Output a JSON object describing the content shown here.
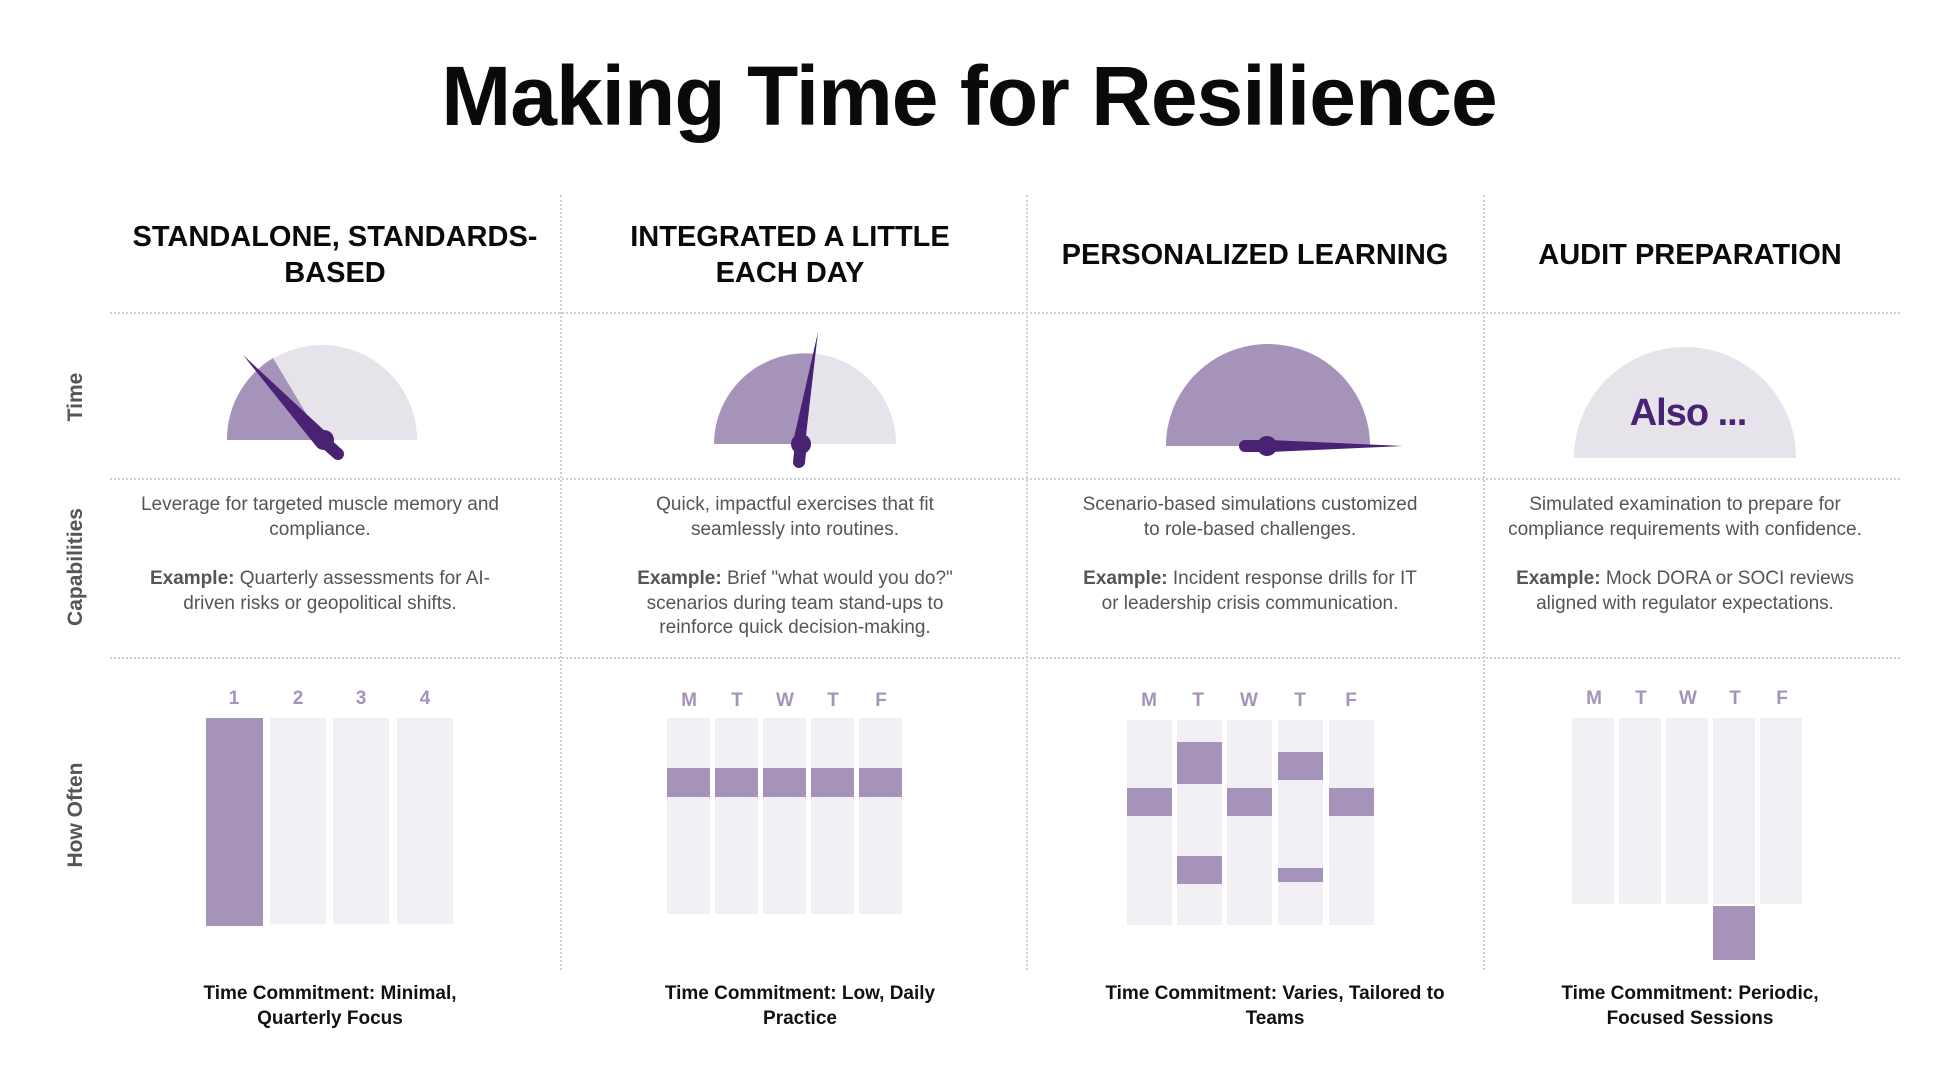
{
  "title": "Making Time for Resilience",
  "row_labels": {
    "time": "Time",
    "capabilities": "Capabilities",
    "how_often": "How Often"
  },
  "colors": {
    "accent_dark": "#4a2273",
    "accent": "#a593b9",
    "light": "#e6e3ea",
    "cell": "#f2f0f4",
    "text_gray": "#555555"
  },
  "columns": [
    {
      "heading": "STANDALONE, STANDARDS-BASED",
      "gauge": {
        "fill_fraction": 0.25,
        "needle_fraction": 0.25,
        "label": ""
      },
      "capability": "Leverage for targeted muscle memory and compliance.",
      "example_label": "Example:",
      "example": "Quarterly assessments for AI-driven risks or geopolitical shifts.",
      "calendar": {
        "days": [
          "1",
          "2",
          "3",
          "4"
        ]
      },
      "commitment": "Time Commitment: Minimal, Quarterly Focus"
    },
    {
      "heading": "INTEGRATED A LITTLE EACH DAY",
      "gauge": {
        "fill_fraction": 0.45,
        "needle_fraction": 0.45,
        "label": ""
      },
      "capability": "Quick, impactful exercises that fit seamlessly into routines.",
      "example_label": "Example:",
      "example": "Brief \"what would you do?\" scenarios during team stand-ups to reinforce quick decision-making.",
      "calendar": {
        "days": [
          "M",
          "T",
          "W",
          "T",
          "F"
        ]
      },
      "commitment": "Time Commitment: Low, Daily Practice"
    },
    {
      "heading": "PERSONALIZED LEARNING",
      "gauge": {
        "fill_fraction": 1.0,
        "needle_fraction": 1.0,
        "label": ""
      },
      "capability": "Scenario-based simulations customized to role-based challenges.",
      "example_label": "Example:",
      "example": "Incident response drills for IT or leadership crisis communication.",
      "calendar": {
        "days": [
          "M",
          "T",
          "W",
          "T",
          "F"
        ]
      },
      "commitment": "Time Commitment: Varies, Tailored to Teams"
    },
    {
      "heading": "AUDIT PREPARATION",
      "gauge": {
        "fill_fraction": 0,
        "needle_fraction": null,
        "label": "Also ..."
      },
      "capability": "Simulated examination to prepare for compliance requirements with confidence.",
      "example_label": "Example:",
      "example": "Mock DORA or SOCI reviews aligned with regulator expectations.",
      "calendar": {
        "days": [
          "M",
          "T",
          "W",
          "T",
          "F"
        ]
      },
      "commitment": "Time Commitment: Periodic, Focused Sessions"
    }
  ]
}
